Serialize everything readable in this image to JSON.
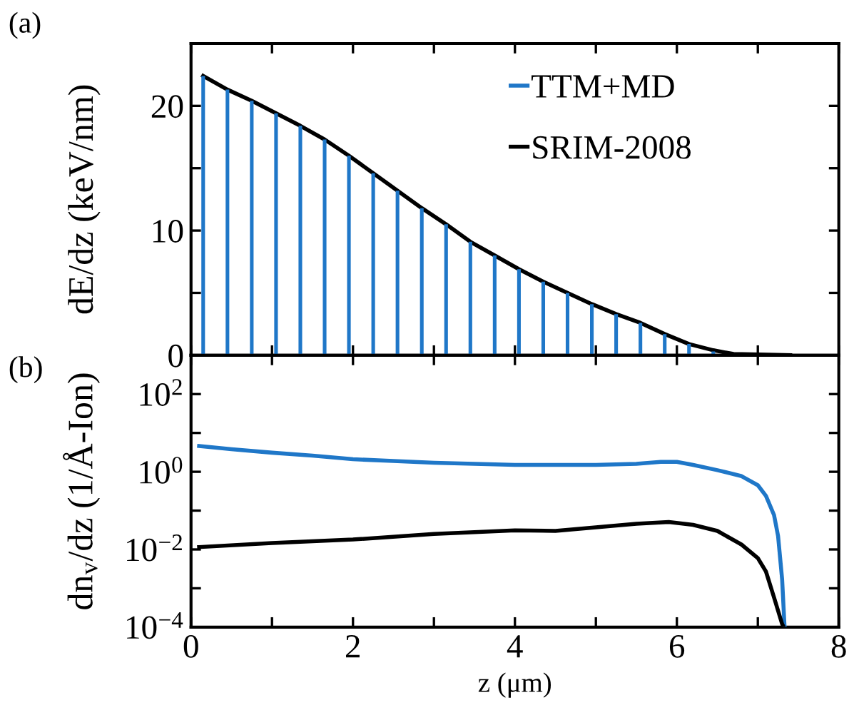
{
  "chart_data": [
    {
      "type": "line",
      "ylabel": "dE/dz (keV/nm)",
      "annotations": [
        "(a)"
      ],
      "legend": "top right",
      "tick_labels": "y",
      "xlim": [
        0,
        8
      ],
      "xticks": [
        {
          "value": 0,
          "label": null
        },
        {
          "value": 1,
          "label": null
        },
        {
          "value": 2,
          "label": null
        },
        {
          "value": 3,
          "label": null
        },
        {
          "value": 4,
          "label": null
        },
        {
          "value": 5,
          "label": null
        },
        {
          "value": 6,
          "label": null
        },
        {
          "value": 7,
          "label": null
        },
        {
          "value": 8,
          "label": null
        }
      ],
      "ylim": [
        0,
        25
      ],
      "yticks": [
        0,
        {
          "value": 5,
          "label": null
        },
        10,
        {
          "value": 15,
          "label": null
        },
        20,
        {
          "value": 25,
          "label": null
        }
      ],
      "series": [
        {
          "name": "TTM+MD",
          "type": "bar",
          "color": "#1f77c8",
          "x": [
            0.15,
            0.45,
            0.75,
            1.05,
            1.35,
            1.65,
            1.95,
            2.25,
            2.55,
            2.85,
            3.15,
            3.45,
            3.75,
            4.05,
            4.35,
            4.65,
            4.95,
            5.25,
            5.55,
            5.85,
            6.15,
            6.45
          ],
          "values": [
            22.4,
            21.3,
            20.4,
            19.4,
            18.4,
            17.3,
            16.0,
            14.6,
            13.2,
            11.8,
            10.5,
            9.1,
            8.0,
            6.9,
            5.9,
            5.0,
            4.1,
            3.3,
            2.6,
            1.7,
            0.9,
            0.3
          ]
        },
        {
          "name": "SRIM-2008",
          "type": "line",
          "color": "#000000",
          "x": [
            0.15,
            0.45,
            0.75,
            1.05,
            1.35,
            1.65,
            1.95,
            2.25,
            2.55,
            2.85,
            3.15,
            3.45,
            3.75,
            4.05,
            4.35,
            4.65,
            4.95,
            5.25,
            5.55,
            5.85,
            6.15,
            6.45,
            6.7,
            7.4
          ],
          "values": [
            22.4,
            21.3,
            20.4,
            19.4,
            18.4,
            17.3,
            16.0,
            14.6,
            13.2,
            11.8,
            10.5,
            9.1,
            8.0,
            6.9,
            5.9,
            5.0,
            4.1,
            3.3,
            2.6,
            1.7,
            0.9,
            0.4,
            0.1,
            0
          ]
        }
      ]
    },
    {
      "type": "line",
      "xlabel": "z (μm)",
      "ylabel": "dn$_{v}$/dz (1/Å-Ion)",
      "annotations": [
        "(b)"
      ],
      "log": "y",
      "xlim": [
        0,
        8
      ],
      "xticks": [
        0,
        {
          "value": 1,
          "label": null
        },
        2,
        {
          "value": 3,
          "label": null
        },
        4,
        {
          "value": 5,
          "label": null
        },
        6,
        {
          "value": 7,
          "label": null
        },
        8
      ],
      "ylim": [
        0.0001,
        1000
      ],
      "yticks": [
        {
          "value": 0.0001,
          "label": "10$^{−4}$"
        },
        {
          "value": 0.001,
          "label": null
        },
        {
          "value": 0.01,
          "label": "10$^{−2}$"
        },
        {
          "value": 0.1,
          "label": null
        },
        {
          "value": 1,
          "label": "10$^{0}$"
        },
        {
          "value": 10,
          "label": null
        },
        {
          "value": 100,
          "label": "10$^{2}$"
        },
        {
          "value": 1000,
          "label": null
        }
      ],
      "series": [
        {
          "color": "#1f77c8",
          "x": [
            0.1,
            0.5,
            1.0,
            1.5,
            2.0,
            2.5,
            3.0,
            3.5,
            4.0,
            4.5,
            5.0,
            5.5,
            5.8,
            6.0,
            6.2,
            6.5,
            6.8,
            7.0,
            7.1,
            7.2,
            7.25,
            7.3,
            7.33
          ],
          "values": [
            4.6,
            3.8,
            3.1,
            2.6,
            2.1,
            1.9,
            1.7,
            1.6,
            1.5,
            1.5,
            1.5,
            1.6,
            1.8,
            1.8,
            1.5,
            1.1,
            0.77,
            0.45,
            0.24,
            0.077,
            0.022,
            0.0017,
            0.0001
          ]
        },
        {
          "color": "#000000",
          "x": [
            0.1,
            1.0,
            2.0,
            3.0,
            4.0,
            4.5,
            5.0,
            5.5,
            5.9,
            6.2,
            6.5,
            6.8,
            7.0,
            7.1,
            7.2,
            7.3,
            7.32
          ],
          "values": [
            0.0115,
            0.0146,
            0.018,
            0.025,
            0.031,
            0.03,
            0.037,
            0.046,
            0.051,
            0.043,
            0.03,
            0.0133,
            0.006,
            0.0027,
            0.00058,
            0.00012,
            0.0001
          ]
        }
      ]
    }
  ]
}
